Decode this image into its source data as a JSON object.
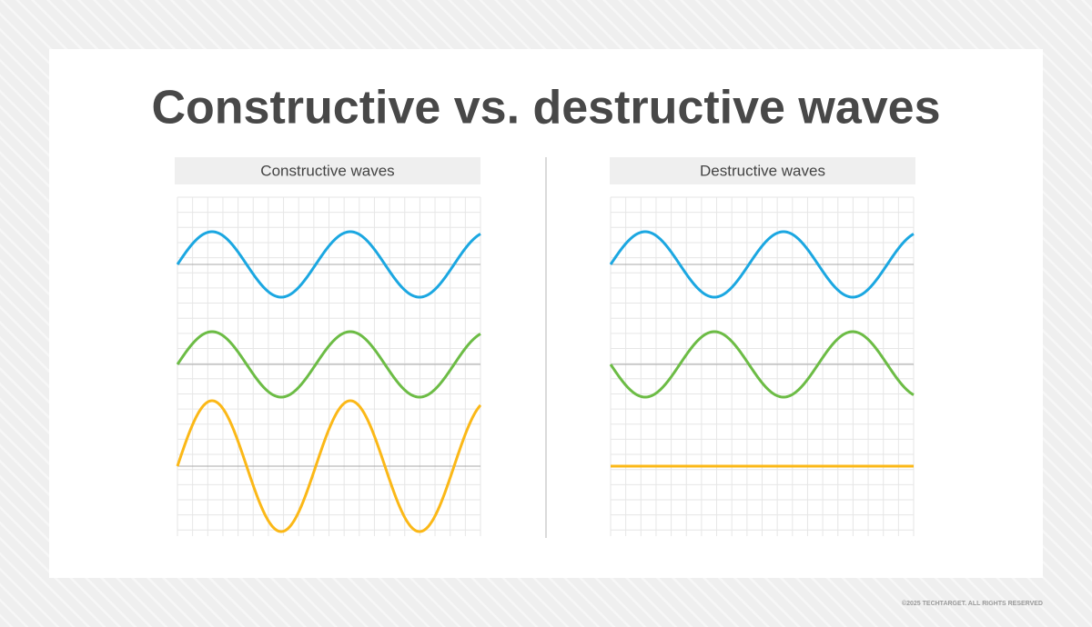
{
  "title": "Constructive vs. destructive waves",
  "panels": [
    {
      "label": "Constructive waves"
    },
    {
      "label": "Destructive waves"
    }
  ],
  "footer": {
    "copyright": "©2025 TECHTARGET. ALL RIGHTS RESERVED"
  }
}
